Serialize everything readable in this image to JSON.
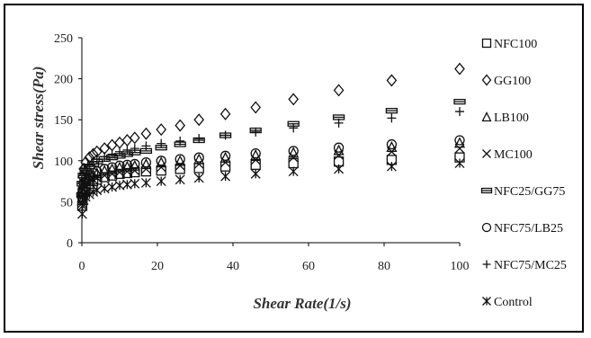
{
  "chart_data": {
    "type": "scatter",
    "title": "",
    "xlabel": "Shear Rate(1/s)",
    "ylabel": "Shear stress(Pa)",
    "xlim": [
      0,
      100
    ],
    "ylim": [
      0,
      250
    ],
    "xticks": [
      0,
      20,
      40,
      60,
      80,
      100
    ],
    "yticks": [
      0,
      50,
      100,
      150,
      200,
      250
    ],
    "grid": false,
    "legend_position": "right",
    "x": [
      0.1,
      0.2,
      0.5,
      1,
      2,
      3,
      4,
      6,
      8,
      10,
      12,
      14,
      17,
      21,
      26,
      31,
      38,
      46,
      56,
      68,
      82,
      100
    ],
    "series": [
      {
        "name": "NFC100",
        "marker": "square",
        "values": [
          45,
          55,
          62,
          68,
          72,
          75,
          77,
          80,
          82,
          84,
          85,
          86,
          87,
          88,
          90,
          91,
          93,
          95,
          97,
          99,
          101,
          104
        ]
      },
      {
        "name": "GG100",
        "marker": "diamond",
        "values": [
          62,
          80,
          90,
          98,
          104,
          108,
          111,
          115,
          119,
          122,
          125,
          128,
          133,
          138,
          143,
          150,
          157,
          165,
          175,
          186,
          198,
          212
        ]
      },
      {
        "name": "LB100",
        "marker": "triangle",
        "values": [
          52,
          62,
          70,
          76,
          80,
          83,
          85,
          88,
          90,
          92,
          93,
          94,
          96,
          98,
          100,
          102,
          104,
          107,
          110,
          113,
          117,
          122
        ]
      },
      {
        "name": "MC100",
        "marker": "x",
        "values": [
          48,
          58,
          65,
          70,
          74,
          77,
          79,
          82,
          84,
          86,
          87,
          88,
          90,
          92,
          94,
          96,
          98,
          101,
          104,
          107,
          111,
          115
        ]
      },
      {
        "name": "NFC25/GG75",
        "marker": "dash-box",
        "values": [
          58,
          72,
          82,
          88,
          93,
          96,
          99,
          102,
          104,
          106,
          108,
          110,
          112,
          116,
          120,
          125,
          131,
          137,
          145,
          153,
          161,
          172
        ]
      },
      {
        "name": "NFC75/LB25",
        "marker": "circle",
        "values": [
          55,
          65,
          73,
          78,
          82,
          85,
          87,
          90,
          92,
          94,
          95,
          96,
          98,
          100,
          102,
          104,
          106,
          109,
          112,
          116,
          120,
          125
        ]
      },
      {
        "name": "NFC75/MC25",
        "marker": "plus",
        "values": [
          60,
          74,
          84,
          90,
          95,
          99,
          102,
          105,
          108,
          111,
          113,
          115,
          118,
          121,
          124,
          127,
          131,
          135,
          140,
          146,
          152,
          160
        ]
      },
      {
        "name": "Control",
        "marker": "asterisk",
        "values": [
          35,
          45,
          52,
          56,
          59,
          62,
          64,
          66,
          68,
          70,
          71,
          72,
          73,
          75,
          77,
          79,
          81,
          84,
          87,
          90,
          93,
          97
        ]
      }
    ]
  }
}
